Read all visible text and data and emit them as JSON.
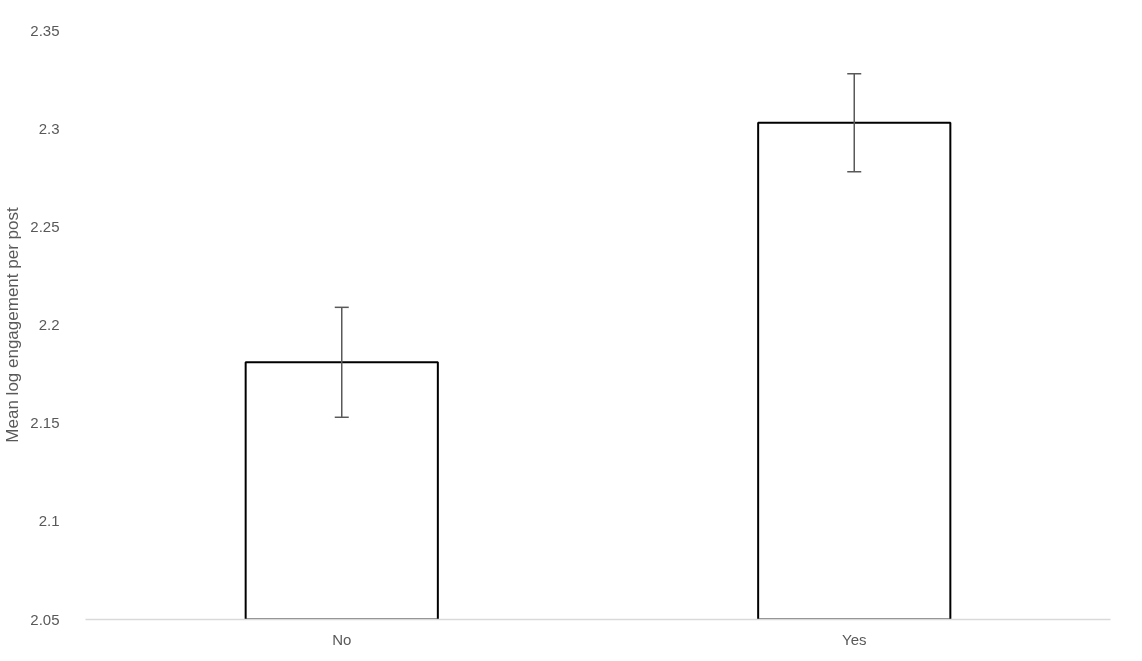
{
  "chart_data": {
    "type": "bar",
    "ylabel": "Mean log engagement per post",
    "categories": [
      "No",
      "Yes"
    ],
    "values": [
      2.181,
      2.303
    ],
    "errors": [
      0.028,
      0.025
    ],
    "color": "#ffffff",
    "ylim": [
      2.05,
      2.35
    ],
    "yticks": [
      2.05,
      2.1,
      2.15,
      2.2,
      2.25,
      2.3,
      2.35
    ],
    "grid": false
  }
}
